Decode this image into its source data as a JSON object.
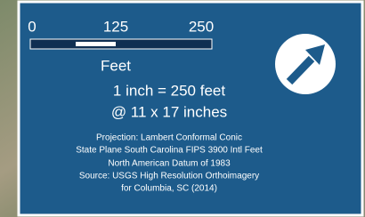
{
  "scale_bar": {
    "labels": [
      "0",
      "125",
      "250"
    ],
    "unit": "Feet"
  },
  "scale_text": [
    "1 inch = 250 feet",
    "@ 11 x 17 inches"
  ],
  "notes": [
    "Projection: Lambert Conformal Conic",
    "State Plane South Carolina FIPS 3900 Intl Feet",
    "North American Datum of 1983",
    "Source: USGS High Resolution Orthoimagery",
    "for Columbia, SC (2014)"
  ]
}
